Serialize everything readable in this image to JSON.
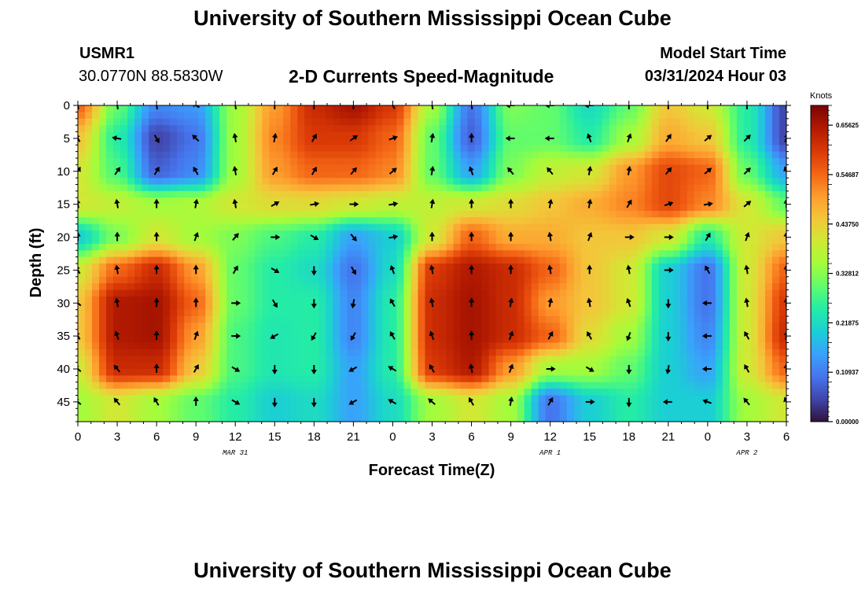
{
  "header": {
    "title": "University of Southern Mississippi Ocean Cube",
    "station_id": "USMR1",
    "coordinates": "30.0770N  88.5830W",
    "plot_title": "2-D Currents Speed-Magnitude",
    "model_start_label": "Model Start Time",
    "model_start_value": "03/31/2024 Hour 03"
  },
  "footer": {
    "title": "University of Southern Mississippi Ocean Cube"
  },
  "colors": {
    "arrow": "#000000",
    "colormap": [
      "#30123b",
      "#4145ab",
      "#4675ed",
      "#39a2fc",
      "#1bcfd4",
      "#24eca6",
      "#61fc6c",
      "#a4fc3b",
      "#d1e834",
      "#f3c63a",
      "#fe9b2d",
      "#f36315",
      "#d93806",
      "#b11901",
      "#7a0402"
    ]
  },
  "chart_data": {
    "type": "heatmap",
    "xlabel": "Forecast Time(Z)",
    "ylabel": "Depth (ft)",
    "x_tick_labels": [
      "0",
      "3",
      "6",
      "9",
      "12",
      "15",
      "18",
      "21",
      "0",
      "3",
      "6",
      "9",
      "12",
      "15",
      "18",
      "21",
      "0",
      "3",
      "6"
    ],
    "x_hours_since_start": [
      0,
      3,
      6,
      9,
      12,
      15,
      18,
      21,
      24,
      27,
      30,
      33,
      36,
      39,
      42,
      45,
      48,
      51,
      54
    ],
    "x_date_labels": [
      {
        "label": "MAR 31",
        "at_hour": 12
      },
      {
        "label": "APR 1",
        "at_hour": 36
      },
      {
        "label": "APR 2",
        "at_hour": 51
      }
    ],
    "y_ticks": [
      0,
      5,
      10,
      15,
      20,
      25,
      30,
      35,
      40,
      45
    ],
    "ylim": [
      0,
      48
    ],
    "y_inverted": true,
    "colorbar": {
      "title": "Knots",
      "min": 0,
      "max": 0.7,
      "tick_labels": [
        "0.65625",
        "0.54687",
        "0.43750",
        "0.32812",
        "0.21875",
        "0.10937",
        "0.00000"
      ],
      "tick_values": [
        0.65625,
        0.546875,
        0.4375,
        0.328125,
        0.21875,
        0.109375,
        0
      ]
    },
    "speed_grid_depths_ft": [
      0,
      5,
      10,
      15,
      20,
      25,
      30,
      35,
      40,
      45
    ],
    "speed_grid_hours": [
      0,
      3,
      6,
      9,
      12,
      15,
      18,
      21,
      24,
      27,
      30,
      33,
      36,
      39,
      42,
      45,
      48,
      51,
      54
    ],
    "speed_knots": [
      [
        0.55,
        0.3,
        0.12,
        0.14,
        0.35,
        0.5,
        0.62,
        0.66,
        0.6,
        0.35,
        0.1,
        0.32,
        0.3,
        0.22,
        0.3,
        0.45,
        0.4,
        0.25,
        0.05
      ],
      [
        0.45,
        0.25,
        0.05,
        0.1,
        0.35,
        0.52,
        0.6,
        0.6,
        0.55,
        0.3,
        0.08,
        0.3,
        0.3,
        0.25,
        0.35,
        0.48,
        0.45,
        0.25,
        0.05
      ],
      [
        0.4,
        0.28,
        0.08,
        0.12,
        0.35,
        0.5,
        0.55,
        0.55,
        0.52,
        0.3,
        0.15,
        0.32,
        0.38,
        0.4,
        0.5,
        0.58,
        0.55,
        0.3,
        0.15
      ],
      [
        0.4,
        0.38,
        0.35,
        0.36,
        0.4,
        0.42,
        0.42,
        0.4,
        0.38,
        0.38,
        0.4,
        0.42,
        0.45,
        0.48,
        0.52,
        0.58,
        0.52,
        0.4,
        0.3
      ],
      [
        0.2,
        0.32,
        0.4,
        0.35,
        0.32,
        0.28,
        0.25,
        0.15,
        0.2,
        0.4,
        0.55,
        0.48,
        0.48,
        0.45,
        0.45,
        0.4,
        0.25,
        0.4,
        0.45
      ],
      [
        0.4,
        0.55,
        0.62,
        0.5,
        0.3,
        0.25,
        0.22,
        0.1,
        0.22,
        0.6,
        0.65,
        0.62,
        0.55,
        0.45,
        0.4,
        0.2,
        0.1,
        0.4,
        0.55
      ],
      [
        0.45,
        0.65,
        0.66,
        0.55,
        0.3,
        0.25,
        0.25,
        0.12,
        0.25,
        0.62,
        0.66,
        0.62,
        0.5,
        0.45,
        0.4,
        0.2,
        0.1,
        0.4,
        0.6
      ],
      [
        0.45,
        0.65,
        0.66,
        0.5,
        0.28,
        0.24,
        0.25,
        0.12,
        0.25,
        0.62,
        0.66,
        0.62,
        0.55,
        0.42,
        0.35,
        0.2,
        0.12,
        0.4,
        0.62
      ],
      [
        0.4,
        0.62,
        0.62,
        0.45,
        0.28,
        0.24,
        0.25,
        0.15,
        0.25,
        0.6,
        0.65,
        0.5,
        0.35,
        0.35,
        0.3,
        0.2,
        0.15,
        0.4,
        0.55
      ],
      [
        0.35,
        0.4,
        0.35,
        0.3,
        0.25,
        0.2,
        0.22,
        0.15,
        0.22,
        0.35,
        0.4,
        0.35,
        0.1,
        0.2,
        0.25,
        0.2,
        0.2,
        0.35,
        0.4
      ]
    ],
    "vector_depths_ft": [
      0,
      5,
      10,
      15,
      20,
      25,
      30,
      35,
      40,
      45
    ],
    "vector_hours": [
      0,
      3,
      6,
      9,
      12,
      15,
      18,
      21,
      24,
      27,
      30,
      33,
      36,
      39,
      42,
      45,
      48,
      51,
      54
    ],
    "vector_direction_deg": [
      [
        170,
        170,
        170,
        120,
        170,
        180,
        180,
        180,
        150,
        170,
        170,
        90,
        90,
        90,
        180,
        180,
        180,
        180,
        180
      ],
      [
        150,
        100,
        330,
        135,
        170,
        190,
        210,
        235,
        250,
        190,
        180,
        90,
        90,
        160,
        200,
        215,
        230,
        225,
        200
      ],
      [
        210,
        215,
        210,
        150,
        170,
        210,
        210,
        220,
        230,
        190,
        160,
        140,
        140,
        190,
        190,
        220,
        230,
        225,
        160
      ],
      [
        170,
        170,
        180,
        190,
        170,
        240,
        260,
        270,
        260,
        190,
        180,
        180,
        190,
        190,
        210,
        250,
        260,
        230,
        180
      ],
      [
        180,
        180,
        180,
        200,
        220,
        270,
        300,
        320,
        260,
        180,
        180,
        180,
        170,
        200,
        270,
        270,
        210,
        200,
        180
      ],
      [
        150,
        170,
        180,
        180,
        210,
        300,
        0,
        330,
        160,
        170,
        180,
        180,
        170,
        180,
        170,
        270,
        150,
        170,
        180
      ],
      [
        130,
        170,
        180,
        180,
        270,
        330,
        0,
        10,
        150,
        170,
        180,
        190,
        190,
        170,
        160,
        0,
        90,
        170,
        180
      ],
      [
        150,
        160,
        180,
        200,
        270,
        60,
        30,
        30,
        150,
        160,
        180,
        200,
        210,
        150,
        20,
        0,
        90,
        150,
        190
      ],
      [
        130,
        140,
        180,
        210,
        300,
        0,
        0,
        60,
        120,
        150,
        170,
        200,
        270,
        300,
        0,
        10,
        90,
        150,
        180
      ],
      [
        130,
        140,
        150,
        180,
        300,
        0,
        0,
        60,
        120,
        130,
        150,
        190,
        210,
        270,
        0,
        90,
        110,
        140,
        160
      ]
    ]
  }
}
